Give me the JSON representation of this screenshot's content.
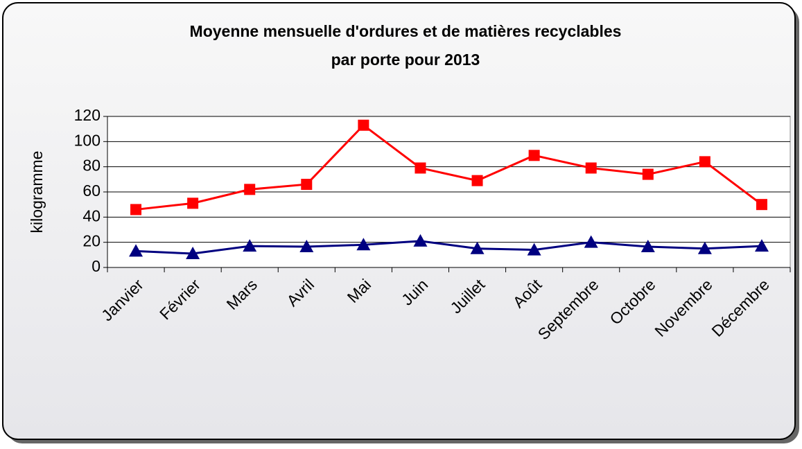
{
  "chart_data": {
    "type": "line",
    "title": [
      "Moyenne mensuelle d'ordures et de matières recyclables",
      "par porte pour 2013"
    ],
    "y_label": "kilogramme",
    "categories": [
      "Janvier",
      "Février",
      "Mars",
      "Avril",
      "Mai",
      "Juin",
      "Juillet",
      "Août",
      "Septembre",
      "Octobre",
      "Novembre",
      "Décembre"
    ],
    "series": [
      {
        "color": "#ff0000",
        "marker": "square",
        "values": [
          46,
          51,
          62,
          66,
          113,
          79,
          69,
          89,
          79,
          74,
          84,
          50
        ]
      },
      {
        "color": "#000080",
        "marker": "triangle",
        "values": [
          13,
          11,
          17,
          16.5,
          18,
          21,
          15,
          14,
          20,
          16.5,
          15,
          17
        ]
      }
    ],
    "ylim": [
      0,
      120
    ],
    "yticks": [
      0,
      20,
      40,
      60,
      80,
      100,
      120
    ],
    "grid": true
  }
}
